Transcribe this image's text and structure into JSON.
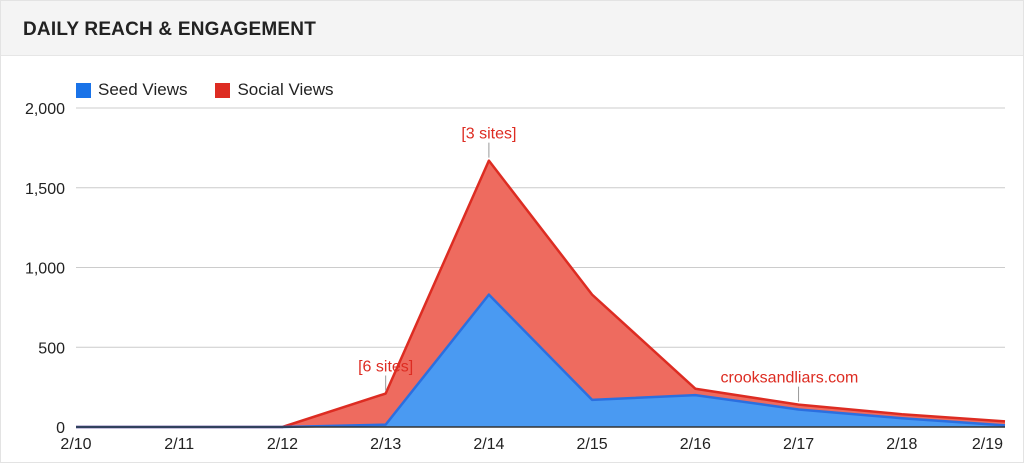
{
  "header": {
    "title": "DAILY REACH & ENGAGEMENT"
  },
  "colors": {
    "seed_fill": "#4a9af2",
    "seed_line": "#2b6fe0",
    "social_fill": "#ee6b5f",
    "social_line": "#dd2c22",
    "annotation": "#dd2c22",
    "grid": "#cccccc",
    "baseline": "#333333"
  },
  "chart_data": {
    "type": "area",
    "stacked": true,
    "categories": [
      "2/10",
      "2/11",
      "2/12",
      "2/13",
      "2/14",
      "2/15",
      "2/16",
      "2/17",
      "2/18",
      "2/19"
    ],
    "series": [
      {
        "name": "Seed Views",
        "color": "#4a9af2",
        "values": [
          0,
          0,
          0,
          15,
          830,
          170,
          200,
          110,
          55,
          10
        ]
      },
      {
        "name": "Social Views",
        "color": "#ee6b5f",
        "values": [
          0,
          0,
          0,
          195,
          840,
          660,
          40,
          30,
          25,
          25
        ]
      }
    ],
    "title": "",
    "xlabel": "",
    "ylabel": "",
    "ylim": [
      0,
      2000
    ],
    "yticks": [
      0,
      500,
      1000,
      1500,
      2000
    ],
    "ytick_labels": [
      "0",
      "500",
      "1,000",
      "1,500",
      "2,000"
    ],
    "grid": true,
    "legend_position": "top-left",
    "annotations": [
      {
        "text": "[6 sites]",
        "category": "2/13",
        "value": 210
      },
      {
        "text": "[3 sites]",
        "category": "2/14",
        "value": 1670
      },
      {
        "text": "crooksandliars.com",
        "category": "2/17",
        "value": 140
      }
    ]
  }
}
